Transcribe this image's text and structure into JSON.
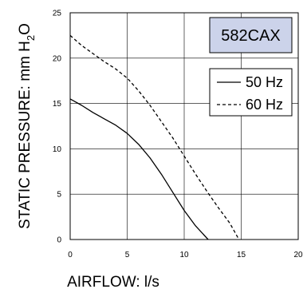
{
  "chart_data": {
    "type": "line",
    "title": "",
    "xlabel": "AIRFLOW: l/s",
    "ylabel": "STATIC PRESSURE: mm H2O",
    "ylabel_parts": {
      "main": "STATIC PRESSURE: mm H",
      "sub": "2",
      "tail": "O"
    },
    "xlim": [
      0,
      20
    ],
    "ylim": [
      0,
      25
    ],
    "x_ticks": [
      0,
      5,
      10,
      15,
      20
    ],
    "y_ticks": [
      0,
      5,
      10,
      15,
      20,
      25
    ],
    "grid": true,
    "legend_position": "top-right",
    "badge": {
      "text": "582CAX",
      "fill": "#ccd3ea"
    },
    "series": [
      {
        "name": "50 Hz",
        "style": "solid",
        "points": [
          [
            0,
            15.5
          ],
          [
            1,
            14.8
          ],
          [
            2,
            14.0
          ],
          [
            3,
            13.3
          ],
          [
            4,
            12.6
          ],
          [
            5,
            11.7
          ],
          [
            6,
            10.5
          ],
          [
            7,
            9.0
          ],
          [
            8,
            7.2
          ],
          [
            9,
            5.2
          ],
          [
            10,
            3.2
          ],
          [
            11,
            1.5
          ],
          [
            12.1,
            0
          ]
        ]
      },
      {
        "name": "60 Hz",
        "style": "dashed",
        "points": [
          [
            0,
            22.5
          ],
          [
            1,
            21.4
          ],
          [
            2,
            20.5
          ],
          [
            3,
            19.6
          ],
          [
            4,
            18.8
          ],
          [
            5,
            17.8
          ],
          [
            6,
            16.4
          ],
          [
            7,
            14.8
          ],
          [
            8,
            13.0
          ],
          [
            9,
            11.2
          ],
          [
            10,
            9.2
          ],
          [
            11,
            7.2
          ],
          [
            12,
            5.3
          ],
          [
            13,
            3.5
          ],
          [
            14,
            1.8
          ],
          [
            14.8,
            0
          ]
        ]
      }
    ]
  }
}
